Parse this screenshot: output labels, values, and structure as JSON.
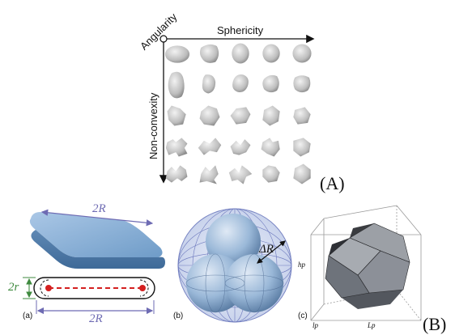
{
  "panel_a": {
    "axis_top": "Sphericity",
    "axis_diag": "Angularity",
    "axis_left": "Non-convexity",
    "panel_label": "(A)"
  },
  "panel_b": {
    "panel_label": "(B)",
    "sub_a": {
      "label": "(a)",
      "dim_top": "2R",
      "dim_side": "2r",
      "dim_bottom": "2R"
    },
    "sub_b": {
      "label": "(b)",
      "dim": "ΔR"
    },
    "sub_c": {
      "label": "(c)",
      "dim_h": "hp",
      "dim_l": "lp",
      "dim_L": "Lp"
    }
  },
  "colors": {
    "plate_blue": "#6f9cc8",
    "sphere_blue": "#8fb2d6",
    "grid_grey": "#c9c9c9",
    "polyhedron_grey": "#8c8f96",
    "red": "#d42020",
    "green_dim": "#3f8a3f",
    "purple_dim": "#6e6bb3"
  }
}
